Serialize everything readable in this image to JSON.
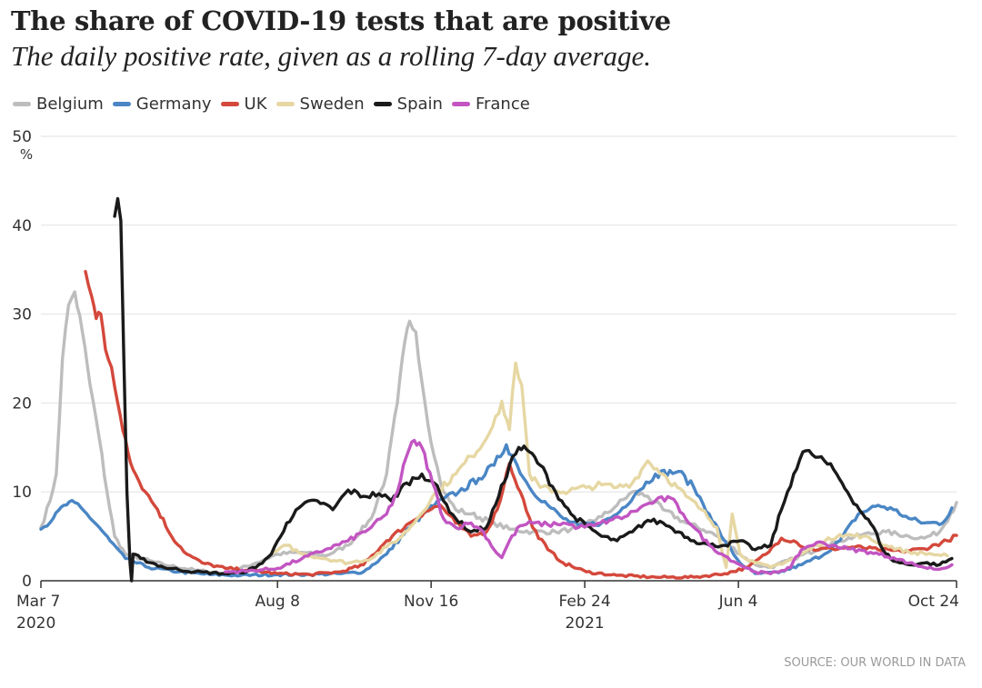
{
  "chart_data": {
    "type": "line",
    "title": "The share of COVID-19 tests that are positive",
    "subtitle": "The daily positive rate, given as a rolling 7-day average.",
    "ylabel": "%",
    "ylim": [
      0,
      50
    ],
    "yticks": [
      0,
      10,
      20,
      30,
      40,
      50
    ],
    "y_unit_label": "%",
    "x_range_days": [
      0,
      596
    ],
    "xticks": [
      {
        "day": 0,
        "label": "Mar 7",
        "sublabel": "2020"
      },
      {
        "day": 154,
        "label": "Aug 8",
        "sublabel": ""
      },
      {
        "day": 254,
        "label": "Nov 16",
        "sublabel": ""
      },
      {
        "day": 354,
        "label": "Feb 24",
        "sublabel": "2021"
      },
      {
        "day": 454,
        "label": "Jun 4",
        "sublabel": ""
      },
      {
        "day": 596,
        "label": "Oct 24",
        "sublabel": ""
      }
    ],
    "grid": true,
    "legend_position": "top-left",
    "series": [
      {
        "name": "Belgium",
        "color": "#bdbdbd",
        "points": [
          [
            0,
            6
          ],
          [
            6,
            9
          ],
          [
            10,
            12
          ],
          [
            14,
            25
          ],
          [
            18,
            31
          ],
          [
            22,
            32.5
          ],
          [
            27,
            28
          ],
          [
            32,
            22
          ],
          [
            38,
            16
          ],
          [
            43,
            10
          ],
          [
            48,
            5
          ],
          [
            55,
            3
          ],
          [
            65,
            2.5
          ],
          [
            80,
            1.8
          ],
          [
            100,
            1.2
          ],
          [
            120,
            0.8
          ],
          [
            140,
            2
          ],
          [
            154,
            3
          ],
          [
            170,
            3.2
          ],
          [
            185,
            2.8
          ],
          [
            200,
            4
          ],
          [
            215,
            7
          ],
          [
            225,
            12
          ],
          [
            232,
            20
          ],
          [
            237,
            27
          ],
          [
            240,
            29.2
          ],
          [
            244,
            28
          ],
          [
            250,
            20
          ],
          [
            256,
            14
          ],
          [
            262,
            10
          ],
          [
            270,
            8
          ],
          [
            280,
            7.5
          ],
          [
            295,
            6.5
          ],
          [
            305,
            5.8
          ],
          [
            320,
            5.5
          ],
          [
            335,
            5.5
          ],
          [
            345,
            5.8
          ],
          [
            355,
            6.5
          ],
          [
            365,
            7.2
          ],
          [
            375,
            8.5
          ],
          [
            385,
            10
          ],
          [
            395,
            9.5
          ],
          [
            405,
            8
          ],
          [
            420,
            6.5
          ],
          [
            435,
            5.5
          ],
          [
            445,
            4.5
          ],
          [
            455,
            3
          ],
          [
            465,
            1.8
          ],
          [
            475,
            1.5
          ],
          [
            490,
            2.5
          ],
          [
            505,
            3.5
          ],
          [
            520,
            4.5
          ],
          [
            535,
            5.2
          ],
          [
            550,
            5.5
          ],
          [
            565,
            5
          ],
          [
            575,
            4.8
          ],
          [
            585,
            5.5
          ],
          [
            592,
            7.5
          ],
          [
            596,
            8.8
          ]
        ]
      },
      {
        "name": "Germany",
        "color": "#4a86c5",
        "points": [
          [
            0,
            5.8
          ],
          [
            8,
            7
          ],
          [
            15,
            8.5
          ],
          [
            22,
            8.8
          ],
          [
            30,
            7.5
          ],
          [
            38,
            6
          ],
          [
            45,
            4.5
          ],
          [
            55,
            2.5
          ],
          [
            70,
            1.5
          ],
          [
            90,
            1
          ],
          [
            110,
            0.7
          ],
          [
            130,
            0.6
          ],
          [
            154,
            0.7
          ],
          [
            175,
            0.7
          ],
          [
            195,
            0.8
          ],
          [
            210,
            1
          ],
          [
            225,
            3
          ],
          [
            240,
            6
          ],
          [
            252,
            8
          ],
          [
            262,
            9.2
          ],
          [
            272,
            10
          ],
          [
            285,
            11.5
          ],
          [
            295,
            13
          ],
          [
            303,
            15.3
          ],
          [
            310,
            13
          ],
          [
            318,
            10.5
          ],
          [
            330,
            8.5
          ],
          [
            340,
            7
          ],
          [
            350,
            6.2
          ],
          [
            365,
            6.5
          ],
          [
            375,
            7.5
          ],
          [
            388,
            10
          ],
          [
            400,
            12
          ],
          [
            415,
            12.3
          ],
          [
            425,
            10.5
          ],
          [
            435,
            7.5
          ],
          [
            445,
            4.5
          ],
          [
            455,
            2
          ],
          [
            465,
            0.8
          ],
          [
            480,
            0.9
          ],
          [
            495,
            1.8
          ],
          [
            510,
            3
          ],
          [
            520,
            4.5
          ],
          [
            532,
            7.5
          ],
          [
            545,
            8.5
          ],
          [
            555,
            8
          ],
          [
            565,
            7
          ],
          [
            575,
            6.5
          ],
          [
            587,
            6.5
          ],
          [
            593,
            8.2
          ]
        ]
      },
      {
        "name": "UK",
        "color": "#d4483b",
        "points": [
          [
            29,
            34.8
          ],
          [
            33,
            32
          ],
          [
            36,
            29.5
          ],
          [
            39,
            30
          ],
          [
            42,
            26
          ],
          [
            46,
            24
          ],
          [
            50,
            20
          ],
          [
            55,
            16
          ],
          [
            60,
            12.5
          ],
          [
            68,
            10
          ],
          [
            76,
            8
          ],
          [
            85,
            5
          ],
          [
            95,
            3
          ],
          [
            105,
            2
          ],
          [
            120,
            1.4
          ],
          [
            135,
            1.2
          ],
          [
            154,
            0.8
          ],
          [
            175,
            0.7
          ],
          [
            195,
            1
          ],
          [
            210,
            1.8
          ],
          [
            225,
            4.5
          ],
          [
            240,
            6.5
          ],
          [
            250,
            7.8
          ],
          [
            260,
            8.5
          ],
          [
            270,
            6.5
          ],
          [
            280,
            5
          ],
          [
            290,
            5.5
          ],
          [
            297,
            8
          ],
          [
            305,
            13.2
          ],
          [
            312,
            10
          ],
          [
            320,
            6
          ],
          [
            330,
            3.5
          ],
          [
            340,
            2
          ],
          [
            355,
            1
          ],
          [
            375,
            0.6
          ],
          [
            400,
            0.4
          ],
          [
            425,
            0.4
          ],
          [
            445,
            0.8
          ],
          [
            460,
            1.5
          ],
          [
            472,
            3
          ],
          [
            482,
            4.8
          ],
          [
            490,
            4.5
          ],
          [
            500,
            3.5
          ],
          [
            515,
            3.6
          ],
          [
            530,
            3.8
          ],
          [
            545,
            3.5
          ],
          [
            560,
            3.3
          ],
          [
            575,
            3.6
          ],
          [
            590,
            4.5
          ],
          [
            596,
            5.1
          ]
        ]
      },
      {
        "name": "Sweden",
        "color": "#e6d7a3",
        "points": [
          [
            150,
            3
          ],
          [
            160,
            4
          ],
          [
            170,
            3
          ],
          [
            185,
            2.5
          ],
          [
            200,
            2
          ],
          [
            215,
            2.5
          ],
          [
            225,
            3.8
          ],
          [
            235,
            5
          ],
          [
            245,
            7
          ],
          [
            255,
            9.5
          ],
          [
            270,
            12
          ],
          [
            280,
            14
          ],
          [
            290,
            16
          ],
          [
            296,
            18.5
          ],
          [
            300,
            20.2
          ],
          [
            305,
            17
          ],
          [
            309,
            24.5
          ],
          [
            313,
            22
          ],
          [
            318,
            12
          ],
          [
            325,
            10.5
          ],
          [
            340,
            10
          ],
          [
            355,
            10.5
          ],
          [
            365,
            10.8
          ],
          [
            375,
            10.5
          ],
          [
            385,
            11
          ],
          [
            395,
            13.5
          ],
          [
            405,
            12
          ],
          [
            420,
            9.5
          ],
          [
            430,
            8
          ],
          [
            440,
            6
          ],
          [
            446,
            1.5
          ],
          [
            450,
            7.5
          ],
          [
            455,
            3
          ],
          [
            465,
            2
          ],
          [
            475,
            1.5
          ],
          [
            490,
            2.5
          ],
          [
            505,
            4
          ],
          [
            520,
            5.2
          ],
          [
            535,
            5
          ],
          [
            550,
            4
          ],
          [
            565,
            3.2
          ],
          [
            580,
            3
          ],
          [
            590,
            2.8
          ]
        ]
      },
      {
        "name": "Spain",
        "color": "#1a1a1a",
        "points": [
          [
            48,
            41
          ],
          [
            50,
            43
          ],
          [
            52,
            40.5
          ],
          [
            54,
            25
          ],
          [
            56,
            10
          ],
          [
            58,
            2
          ],
          [
            59,
            0
          ],
          [
            60,
            3
          ],
          [
            65,
            2.5
          ],
          [
            80,
            1.5
          ],
          [
            100,
            1
          ],
          [
            120,
            0.8
          ],
          [
            130,
            0.9
          ],
          [
            140,
            1.5
          ],
          [
            150,
            3
          ],
          [
            160,
            6.5
          ],
          [
            170,
            8.5
          ],
          [
            180,
            9
          ],
          [
            190,
            8
          ],
          [
            200,
            10.2
          ],
          [
            210,
            9.5
          ],
          [
            220,
            9.8
          ],
          [
            228,
            9
          ],
          [
            238,
            11
          ],
          [
            248,
            12
          ],
          [
            256,
            11
          ],
          [
            262,
            9
          ],
          [
            270,
            7
          ],
          [
            280,
            5.5
          ],
          [
            290,
            6
          ],
          [
            298,
            9.5
          ],
          [
            305,
            13
          ],
          [
            311,
            15
          ],
          [
            318,
            14.5
          ],
          [
            325,
            13
          ],
          [
            335,
            10
          ],
          [
            345,
            7.5
          ],
          [
            355,
            6.2
          ],
          [
            365,
            5
          ],
          [
            375,
            4.5
          ],
          [
            385,
            5.5
          ],
          [
            395,
            6.8
          ],
          [
            405,
            6.5
          ],
          [
            415,
            5.5
          ],
          [
            425,
            4.5
          ],
          [
            435,
            4
          ],
          [
            445,
            4
          ],
          [
            455,
            4.5
          ],
          [
            465,
            3.5
          ],
          [
            475,
            4
          ],
          [
            482,
            8
          ],
          [
            490,
            12
          ],
          [
            496,
            14.5
          ],
          [
            502,
            14.2
          ],
          [
            510,
            13.5
          ],
          [
            518,
            12
          ],
          [
            525,
            10
          ],
          [
            535,
            7.5
          ],
          [
            542,
            6
          ],
          [
            548,
            3.5
          ],
          [
            555,
            2.2
          ],
          [
            565,
            1.8
          ],
          [
            575,
            2
          ],
          [
            585,
            1.8
          ],
          [
            593,
            2.5
          ]
        ]
      },
      {
        "name": "France",
        "color": "#c255c2",
        "points": [
          [
            120,
            1
          ],
          [
            135,
            1.1
          ],
          [
            154,
            1.4
          ],
          [
            170,
            2.5
          ],
          [
            185,
            3.5
          ],
          [
            200,
            4.5
          ],
          [
            215,
            6
          ],
          [
            225,
            7.5
          ],
          [
            232,
            10
          ],
          [
            238,
            14
          ],
          [
            243,
            15.8
          ],
          [
            248,
            15
          ],
          [
            255,
            11
          ],
          [
            262,
            7
          ],
          [
            270,
            6
          ],
          [
            280,
            6.5
          ],
          [
            288,
            5.5
          ],
          [
            295,
            3.5
          ],
          [
            300,
            2.6
          ],
          [
            305,
            4.5
          ],
          [
            312,
            6.2
          ],
          [
            320,
            6.5
          ],
          [
            330,
            6.3
          ],
          [
            340,
            6.5
          ],
          [
            350,
            6
          ],
          [
            360,
            6.2
          ],
          [
            370,
            6.8
          ],
          [
            380,
            7.2
          ],
          [
            390,
            8.2
          ],
          [
            400,
            9
          ],
          [
            410,
            9.3
          ],
          [
            418,
            7.5
          ],
          [
            425,
            6
          ],
          [
            435,
            4
          ],
          [
            445,
            2.8
          ],
          [
            455,
            1.8
          ],
          [
            465,
            1
          ],
          [
            475,
            0.8
          ],
          [
            488,
            1.5
          ],
          [
            495,
            3.5
          ],
          [
            505,
            4.3
          ],
          [
            515,
            4
          ],
          [
            525,
            3.6
          ],
          [
            540,
            3.2
          ],
          [
            555,
            2.6
          ],
          [
            565,
            2
          ],
          [
            575,
            1.5
          ],
          [
            585,
            1.3
          ],
          [
            593,
            1.8
          ]
        ]
      }
    ]
  },
  "source": "SOURCE: OUR WORLD IN DATA"
}
